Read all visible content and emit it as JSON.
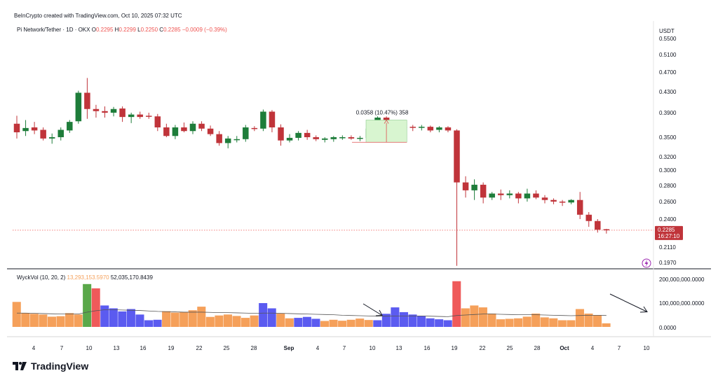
{
  "header": {
    "credit": "BeInCrypto created with TradingView.com, Oct 10, 2025 07:32 UTC",
    "symbol": "Pi Network/Tether · 1D · OKX",
    "o_label": "O",
    "o_value": "0.2295",
    "h_label": "H",
    "h_value": "0.2299",
    "l_label": "L",
    "l_value": "0.2250",
    "c_label": "C",
    "c_value": "0.2285",
    "change": "−0.0009 (−0.39%)"
  },
  "price_axis": {
    "currency": "USDT",
    "last_price_label": "0.2285",
    "countdown": "16:27:10"
  },
  "measure": {
    "label": "0.0358 (10.47%) 358"
  },
  "volume_legend": {
    "name": "WyckVol (10, 20, 2)",
    "value1": "13,293,153.5970",
    "value2": "52,035,170.8439"
  },
  "brand": {
    "name": "TradingView"
  },
  "colors": {
    "up": "#1e7d3a",
    "down": "#c0343a",
    "vol_orange": "#f5a05a",
    "vol_blue": "#5b5bf0",
    "vol_green": "#5aa84a",
    "vol_red": "#ef5a5a",
    "measure_fill": "#d8f5d0",
    "axis": "#131722"
  },
  "chart_data": [
    {
      "type": "candlestick",
      "title": "Pi Network/Tether · 1D · OKX",
      "y_unit": "USDT",
      "y_ticks": [
        "0.5500",
        "0.5100",
        "0.4700",
        "0.4300",
        "0.3900",
        "0.3500",
        "0.3200",
        "0.3000",
        "0.2800",
        "0.2600",
        "0.2400",
        "0.2110",
        "0.1970"
      ],
      "x_ticks": [
        "4",
        "7",
        "10",
        "13",
        "16",
        "19",
        "22",
        "25",
        "28",
        "Sep",
        "4",
        "7",
        "10",
        "13",
        "16",
        "19",
        "22",
        "25",
        "28",
        "Oct",
        "4",
        "7",
        "10"
      ],
      "candles": [
        {
          "o": 0.372,
          "h": 0.385,
          "l": 0.348,
          "c": 0.358
        },
        {
          "o": 0.36,
          "h": 0.378,
          "l": 0.352,
          "c": 0.365
        },
        {
          "o": 0.366,
          "h": 0.375,
          "l": 0.355,
          "c": 0.361
        },
        {
          "o": 0.362,
          "h": 0.366,
          "l": 0.345,
          "c": 0.348
        },
        {
          "o": 0.348,
          "h": 0.356,
          "l": 0.34,
          "c": 0.35
        },
        {
          "o": 0.35,
          "h": 0.366,
          "l": 0.345,
          "c": 0.362
        },
        {
          "o": 0.361,
          "h": 0.378,
          "l": 0.357,
          "c": 0.375
        },
        {
          "o": 0.376,
          "h": 0.432,
          "l": 0.372,
          "c": 0.428
        },
        {
          "o": 0.428,
          "h": 0.458,
          "l": 0.38,
          "c": 0.397
        },
        {
          "o": 0.397,
          "h": 0.405,
          "l": 0.382,
          "c": 0.393
        },
        {
          "o": 0.393,
          "h": 0.402,
          "l": 0.382,
          "c": 0.39
        },
        {
          "o": 0.39,
          "h": 0.401,
          "l": 0.384,
          "c": 0.397
        },
        {
          "o": 0.398,
          "h": 0.402,
          "l": 0.375,
          "c": 0.383
        },
        {
          "o": 0.383,
          "h": 0.39,
          "l": 0.373,
          "c": 0.387
        },
        {
          "o": 0.387,
          "h": 0.392,
          "l": 0.38,
          "c": 0.383
        },
        {
          "o": 0.385,
          "h": 0.39,
          "l": 0.38,
          "c": 0.384
        },
        {
          "o": 0.384,
          "h": 0.388,
          "l": 0.36,
          "c": 0.366
        },
        {
          "o": 0.366,
          "h": 0.372,
          "l": 0.35,
          "c": 0.352
        },
        {
          "o": 0.352,
          "h": 0.37,
          "l": 0.347,
          "c": 0.366
        },
        {
          "o": 0.366,
          "h": 0.374,
          "l": 0.358,
          "c": 0.36
        },
        {
          "o": 0.36,
          "h": 0.376,
          "l": 0.355,
          "c": 0.372
        },
        {
          "o": 0.372,
          "h": 0.376,
          "l": 0.36,
          "c": 0.364
        },
        {
          "o": 0.364,
          "h": 0.369,
          "l": 0.352,
          "c": 0.355
        },
        {
          "o": 0.355,
          "h": 0.36,
          "l": 0.337,
          "c": 0.341
        },
        {
          "o": 0.341,
          "h": 0.352,
          "l": 0.333,
          "c": 0.348
        },
        {
          "o": 0.347,
          "h": 0.352,
          "l": 0.342,
          "c": 0.347
        },
        {
          "o": 0.347,
          "h": 0.37,
          "l": 0.343,
          "c": 0.366
        },
        {
          "o": 0.365,
          "h": 0.368,
          "l": 0.36,
          "c": 0.364
        },
        {
          "o": 0.364,
          "h": 0.396,
          "l": 0.36,
          "c": 0.392
        },
        {
          "o": 0.392,
          "h": 0.395,
          "l": 0.358,
          "c": 0.366
        },
        {
          "o": 0.366,
          "h": 0.371,
          "l": 0.337,
          "c": 0.345
        },
        {
          "o": 0.345,
          "h": 0.355,
          "l": 0.342,
          "c": 0.349
        },
        {
          "o": 0.349,
          "h": 0.36,
          "l": 0.345,
          "c": 0.357
        },
        {
          "o": 0.357,
          "h": 0.362,
          "l": 0.346,
          "c": 0.35
        },
        {
          "o": 0.35,
          "h": 0.353,
          "l": 0.344,
          "c": 0.347
        },
        {
          "o": 0.346,
          "h": 0.35,
          "l": 0.342,
          "c": 0.348
        },
        {
          "o": 0.347,
          "h": 0.352,
          "l": 0.343,
          "c": 0.35
        },
        {
          "o": 0.349,
          "h": 0.353,
          "l": 0.346,
          "c": 0.35
        },
        {
          "o": 0.35,
          "h": 0.353,
          "l": 0.346,
          "c": 0.348
        },
        {
          "o": 0.348,
          "h": 0.352,
          "l": 0.344,
          "c": 0.349
        },
        {
          "o": 0.349,
          "h": 0.368,
          "l": 0.346,
          "c": 0.364
        },
        {
          "o": 0.364,
          "h": 0.384,
          "l": 0.362,
          "c": 0.382
        },
        {
          "o": 0.382,
          "h": 0.384,
          "l": 0.36,
          "c": 0.365
        },
        {
          "o": 0.364,
          "h": 0.367,
          "l": 0.35,
          "c": 0.366
        },
        {
          "o": 0.365,
          "h": 0.37,
          "l": 0.358,
          "c": 0.367
        },
        {
          "o": 0.367,
          "h": 0.37,
          "l": 0.36,
          "c": 0.366
        },
        {
          "o": 0.366,
          "h": 0.37,
          "l": 0.361,
          "c": 0.367
        },
        {
          "o": 0.367,
          "h": 0.369,
          "l": 0.358,
          "c": 0.361
        },
        {
          "o": 0.362,
          "h": 0.368,
          "l": 0.358,
          "c": 0.366
        },
        {
          "o": 0.366,
          "h": 0.368,
          "l": 0.358,
          "c": 0.361
        },
        {
          "o": 0.361,
          "h": 0.363,
          "l": 0.194,
          "c": 0.284
        },
        {
          "o": 0.284,
          "h": 0.292,
          "l": 0.265,
          "c": 0.274
        },
        {
          "o": 0.274,
          "h": 0.288,
          "l": 0.262,
          "c": 0.281
        },
        {
          "o": 0.281,
          "h": 0.284,
          "l": 0.258,
          "c": 0.265
        },
        {
          "o": 0.265,
          "h": 0.272,
          "l": 0.262,
          "c": 0.27
        },
        {
          "o": 0.27,
          "h": 0.275,
          "l": 0.262,
          "c": 0.268
        },
        {
          "o": 0.268,
          "h": 0.274,
          "l": 0.264,
          "c": 0.27
        },
        {
          "o": 0.27,
          "h": 0.272,
          "l": 0.258,
          "c": 0.264
        },
        {
          "o": 0.264,
          "h": 0.276,
          "l": 0.26,
          "c": 0.27
        },
        {
          "o": 0.27,
          "h": 0.274,
          "l": 0.263,
          "c": 0.265
        },
        {
          "o": 0.265,
          "h": 0.268,
          "l": 0.258,
          "c": 0.262
        },
        {
          "o": 0.262,
          "h": 0.264,
          "l": 0.257,
          "c": 0.26
        },
        {
          "o": 0.26,
          "h": 0.262,
          "l": 0.255,
          "c": 0.259
        },
        {
          "o": 0.259,
          "h": 0.263,
          "l": 0.257,
          "c": 0.262
        },
        {
          "o": 0.262,
          "h": 0.272,
          "l": 0.24,
          "c": 0.245
        },
        {
          "o": 0.245,
          "h": 0.248,
          "l": 0.232,
          "c": 0.238
        },
        {
          "o": 0.238,
          "h": 0.24,
          "l": 0.226,
          "c": 0.229
        },
        {
          "o": 0.2295,
          "h": 0.2299,
          "l": 0.225,
          "c": 0.2285
        }
      ]
    },
    {
      "type": "bar",
      "title": "WyckVol (10, 20, 2)",
      "y_ticks": [
        "200,000,000.0000",
        "100,000,000.0000",
        "0.0000"
      ],
      "ylim": [
        0,
        200000000
      ],
      "values": [
        105,
        58,
        55,
        52,
        43,
        45,
        58,
        52,
        180,
        162,
        90,
        78,
        65,
        75,
        52,
        28,
        30,
        66,
        60,
        62,
        70,
        85,
        42,
        48,
        52,
        46,
        38,
        48,
        100,
        78,
        56,
        36,
        38,
        42,
        34,
        25,
        30,
        26,
        30,
        35,
        29,
        28,
        55,
        82,
        62,
        52,
        46,
        36,
        32,
        28,
        192,
        78,
        90,
        82,
        56,
        32,
        34,
        36,
        43,
        56,
        40,
        36,
        28,
        28,
        75,
        56,
        50,
        15
      ],
      "colors": [
        "o",
        "o",
        "o",
        "o",
        "o",
        "o",
        "o",
        "o",
        "g",
        "r",
        "b",
        "b",
        "b",
        "b",
        "b",
        "b",
        "b",
        "o",
        "o",
        "o",
        "o",
        "o",
        "o",
        "o",
        "o",
        "o",
        "o",
        "o",
        "b",
        "b",
        "o",
        "o",
        "b",
        "b",
        "b",
        "o",
        "o",
        "o",
        "o",
        "o",
        "o",
        "b",
        "b",
        "b",
        "b",
        "b",
        "b",
        "b",
        "b",
        "b",
        "r",
        "o",
        "o",
        "o",
        "o",
        "o",
        "o",
        "o",
        "o",
        "o",
        "o",
        "o",
        "o",
        "o",
        "o",
        "o",
        "o",
        "o"
      ],
      "ma": [
        58,
        58,
        57,
        56,
        55,
        54,
        54,
        54,
        62,
        68,
        72,
        72,
        71,
        70,
        69,
        67,
        65,
        64,
        63,
        62,
        62,
        62,
        61,
        60,
        60,
        59,
        58,
        57,
        58,
        58,
        57,
        56,
        55,
        54,
        53,
        52,
        51,
        49,
        48,
        47,
        46,
        45,
        45,
        46,
        46,
        46,
        46,
        45,
        44,
        43,
        48,
        50,
        52,
        54,
        54,
        53,
        52,
        51,
        51,
        51,
        50,
        49,
        48,
        47,
        48,
        49,
        49,
        48
      ]
    }
  ]
}
